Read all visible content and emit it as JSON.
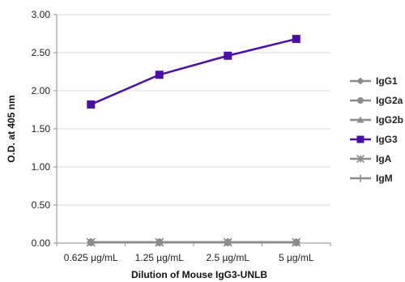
{
  "chart_data": {
    "type": "line",
    "title": "",
    "xlabel": "Dilution of Mouse IgG3-UNLB",
    "ylabel": "O.D. at 405 nm",
    "categories": [
      "0.625 µg/mL",
      "1.25 µg/mL",
      "2.5 µg/mL",
      "5 µg/mL"
    ],
    "ylim": [
      0,
      3
    ],
    "yticks": [
      "0.00",
      "0.50",
      "1.00",
      "1.50",
      "2.00",
      "2.50",
      "3.00"
    ],
    "grid": true,
    "legend_position": "right",
    "series": [
      {
        "name": "IgG1",
        "values": [
          0.01,
          0.01,
          0.01,
          0.01
        ],
        "color": "#8c8c8c",
        "marker": "diamond"
      },
      {
        "name": "IgG2a",
        "values": [
          0.01,
          0.01,
          0.01,
          0.01
        ],
        "color": "#8c8c8c",
        "marker": "circle"
      },
      {
        "name": "IgG2b",
        "values": [
          0.01,
          0.01,
          0.01,
          0.01
        ],
        "color": "#8c8c8c",
        "marker": "triangle"
      },
      {
        "name": "IgG3",
        "values": [
          1.82,
          2.21,
          2.46,
          2.68
        ],
        "color": "#4b0fa5",
        "marker": "square"
      },
      {
        "name": "IgA",
        "values": [
          0.01,
          0.01,
          0.01,
          0.01
        ],
        "color": "#8c8c8c",
        "marker": "star"
      },
      {
        "name": "IgM",
        "values": [
          0.01,
          0.01,
          0.01,
          0.01
        ],
        "color": "#8c8c8c",
        "marker": "cross"
      }
    ]
  }
}
